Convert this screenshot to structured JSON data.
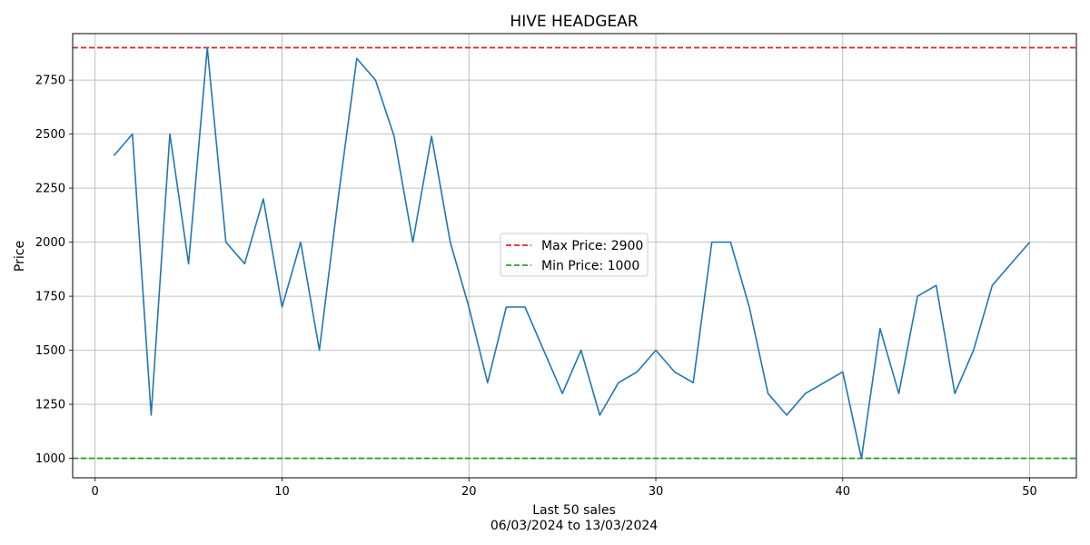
{
  "chart_data": {
    "type": "line",
    "title": "HIVE HEADGEAR",
    "xlabel_line1": "Last 50 sales",
    "xlabel_line2": "06/03/2024 to 13/03/2024",
    "ylabel": "Price",
    "xlim": [
      -1.2,
      52.5
    ],
    "ylim": [
      910,
      2965
    ],
    "xticks": [
      0,
      10,
      20,
      30,
      40,
      50
    ],
    "yticks": [
      1000,
      1250,
      1500,
      1750,
      2000,
      2250,
      2500,
      2750
    ],
    "grid": true,
    "legend_position": "center",
    "series": [
      {
        "color": "#1f77b4",
        "x": [
          1,
          2,
          3,
          4,
          5,
          6,
          7,
          8,
          9,
          10,
          11,
          12,
          13,
          14,
          15,
          16,
          17,
          18,
          19,
          20,
          21,
          22,
          23,
          24,
          25,
          26,
          27,
          28,
          29,
          30,
          31,
          32,
          33,
          34,
          35,
          36,
          37,
          38,
          39,
          40,
          41,
          42,
          43,
          44,
          45,
          46,
          47,
          48,
          49,
          50
        ],
        "y": [
          2400,
          2500,
          1200,
          2500,
          1900,
          2900,
          2000,
          1900,
          2200,
          1700,
          2000,
          1500,
          2200,
          2850,
          2750,
          2490,
          2000,
          2490,
          2000,
          1700,
          1350,
          1700,
          1700,
          1500,
          1300,
          1500,
          1200,
          1350,
          1400,
          1500,
          1400,
          1350,
          2000,
          2000,
          1700,
          1300,
          1200,
          1300,
          1350,
          1400,
          1000,
          1600,
          1300,
          1750,
          1800,
          1300,
          1500,
          1800,
          1900,
          2000
        ]
      }
    ],
    "reference_lines": [
      {
        "label": "Max Price: 2900",
        "value": 2900,
        "color": "#d62728"
      },
      {
        "label": "Min Price: 1000",
        "value": 1000,
        "color": "#2ca02c"
      }
    ]
  }
}
